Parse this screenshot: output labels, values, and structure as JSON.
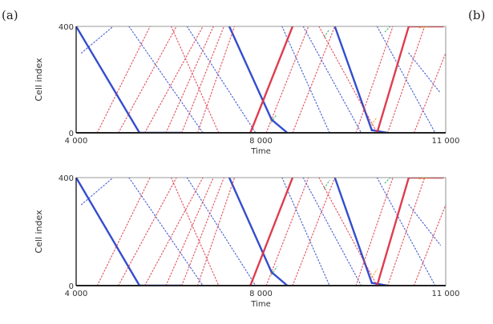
{
  "panel_labels": {
    "a": "(a)",
    "b": "(b)"
  },
  "colors": {
    "red": "#dd3344",
    "blue": "#2a44cc",
    "green": "#22aa55",
    "orange": "#ff9900",
    "frame": "#222222"
  },
  "chart_data": [
    {
      "type": "scatter",
      "title": "",
      "xlabel": "Time",
      "ylabel": "Cell index",
      "xlim": [
        4000,
        11000
      ],
      "ylim": [
        0,
        400
      ],
      "x_ticks": [
        "4 000",
        "8 000",
        "11 000"
      ],
      "y_ticks": [
        "0",
        "400"
      ],
      "series": [
        {
          "color": "blue",
          "strong": true,
          "segments": [
            [
              4000,
              400,
              5200,
              0
            ],
            [
              5200,
              0,
              6000,
              0
            ],
            [
              6900,
              400,
              7700,
              50
            ],
            [
              7700,
              50,
              8000,
              0
            ],
            [
              8900,
              400,
              9600,
              10
            ],
            [
              9600,
              10,
              9900,
              0
            ]
          ]
        },
        {
          "color": "blue",
          "strong": false,
          "segments": [
            [
              4100,
              300,
              4700,
              400
            ],
            [
              5000,
              400,
              6400,
              0
            ],
            [
              6100,
              400,
              7400,
              0
            ],
            [
              7900,
              400,
              8800,
              0
            ],
            [
              8300,
              400,
              9400,
              0
            ],
            [
              9700,
              400,
              10800,
              0
            ],
            [
              10300,
              300,
              10900,
              150
            ]
          ]
        },
        {
          "color": "red",
          "strong": true,
          "segments": [
            [
              7300,
              0,
              8100,
              400
            ],
            [
              9700,
              0,
              10300,
              400
            ],
            [
              10300,
              400,
              10950,
              400
            ]
          ]
        },
        {
          "color": "red",
          "strong": false,
          "segments": [
            [
              4400,
              0,
              5400,
              400
            ],
            [
              4800,
              0,
              5900,
              400
            ],
            [
              5300,
              0,
              6400,
              400
            ],
            [
              5700,
              0,
              6600,
              400
            ],
            [
              6000,
              0,
              6800,
              400
            ],
            [
              6300,
              0,
              7000,
              400
            ],
            [
              7600,
              0,
              8400,
              400
            ],
            [
              8100,
              0,
              8900,
              400
            ],
            [
              9300,
              0,
              10000,
              400
            ],
            [
              9900,
              0,
              10600,
              400
            ],
            [
              10400,
              0,
              11000,
              300
            ],
            [
              5800,
              400,
              6700,
              0
            ],
            [
              8600,
              400,
              9700,
              0
            ]
          ]
        },
        {
          "color": "green",
          "strong": false,
          "segments": [
            [
              7700,
              40,
              7800,
              70
            ],
            [
              8700,
              360,
              8800,
              390
            ],
            [
              9850,
              380,
              9950,
              400
            ]
          ]
        },
        {
          "color": "orange",
          "strong": false,
          "segments": [
            [
              9600,
              30,
              9700,
              60
            ],
            [
              10500,
              395,
              10700,
              400
            ]
          ]
        }
      ]
    },
    {
      "type": "scatter",
      "title": "",
      "xlabel": "Time",
      "ylabel": "Cell index",
      "xlim": [
        4000,
        11000
      ],
      "ylim": [
        0,
        400
      ],
      "x_ticks": [
        "4 000",
        "8 000",
        "11 000"
      ],
      "y_ticks": [
        "0",
        "400"
      ],
      "series": [
        {
          "color": "blue",
          "strong": true,
          "segments": [
            [
              4000,
              400,
              5200,
              0
            ],
            [
              5200,
              0,
              6000,
              0
            ],
            [
              6900,
              400,
              7700,
              50
            ],
            [
              7700,
              50,
              8000,
              0
            ],
            [
              8900,
              400,
              9600,
              10
            ],
            [
              9600,
              10,
              9900,
              0
            ]
          ]
        },
        {
          "color": "blue",
          "strong": false,
          "segments": [
            [
              4100,
              300,
              4700,
              400
            ],
            [
              5000,
              400,
              6400,
              0
            ],
            [
              6100,
              400,
              7400,
              0
            ],
            [
              7900,
              400,
              8800,
              0
            ],
            [
              8300,
              400,
              9400,
              0
            ],
            [
              9700,
              400,
              10800,
              0
            ],
            [
              10300,
              300,
              10900,
              150
            ]
          ]
        },
        {
          "color": "red",
          "strong": true,
          "segments": [
            [
              7300,
              0,
              8100,
              400
            ],
            [
              9700,
              0,
              10300,
              400
            ],
            [
              10300,
              400,
              10950,
              400
            ]
          ]
        },
        {
          "color": "red",
          "strong": false,
          "segments": [
            [
              4400,
              0,
              5400,
              400
            ],
            [
              4800,
              0,
              5900,
              400
            ],
            [
              5300,
              0,
              6400,
              400
            ],
            [
              5700,
              0,
              6600,
              400
            ],
            [
              6000,
              0,
              6800,
              400
            ],
            [
              6300,
              0,
              7000,
              400
            ],
            [
              7600,
              0,
              8400,
              400
            ],
            [
              8100,
              0,
              8900,
              400
            ],
            [
              9300,
              0,
              10000,
              400
            ],
            [
              9900,
              0,
              10600,
              400
            ],
            [
              10400,
              0,
              11000,
              300
            ],
            [
              5800,
              400,
              6700,
              0
            ],
            [
              8600,
              400,
              9700,
              0
            ]
          ]
        },
        {
          "color": "green",
          "strong": false,
          "segments": [
            [
              7700,
              40,
              7800,
              70
            ],
            [
              8700,
              360,
              8800,
              390
            ],
            [
              9850,
              380,
              9950,
              400
            ]
          ]
        },
        {
          "color": "orange",
          "strong": false,
          "segments": [
            [
              9600,
              30,
              9700,
              60
            ],
            [
              10500,
              395,
              10700,
              400
            ]
          ]
        }
      ]
    }
  ]
}
